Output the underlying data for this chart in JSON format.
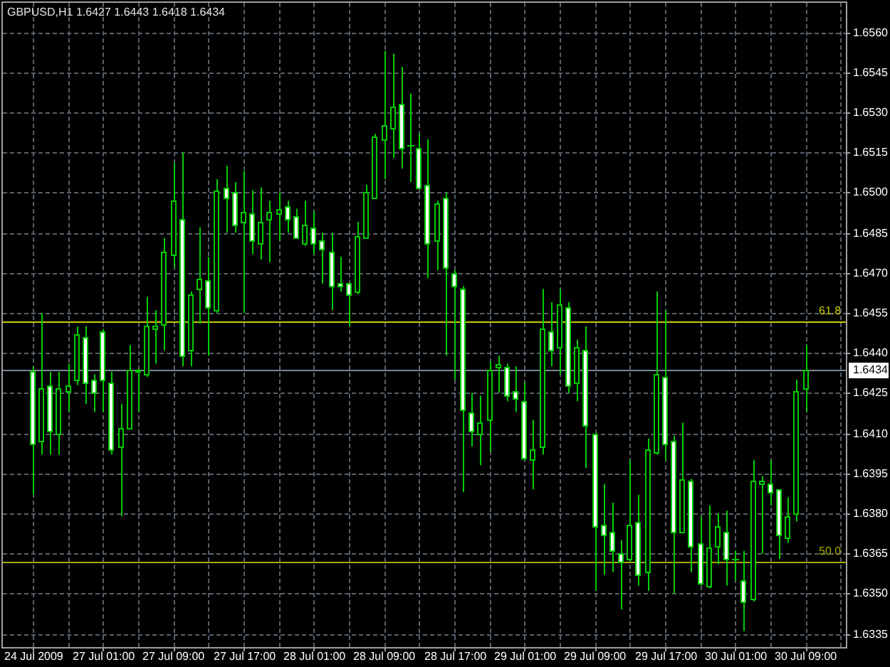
{
  "chart_data": {
    "type": "candlestick",
    "title": "GBPUSD,H1 1.6427 1.6443 1.6418 1.6434",
    "categories": [
      "24 Jul 2009",
      null,
      null,
      null,
      null,
      null,
      null,
      null,
      "27 Jul 01:00",
      null,
      null,
      null,
      null,
      null,
      null,
      null,
      "27 Jul 09:00",
      null,
      null,
      null,
      null,
      null,
      null,
      null,
      "27 Jul 17:00",
      null,
      null,
      null,
      null,
      null,
      null,
      null,
      "28 Jul 01:00",
      null,
      null,
      null,
      null,
      null,
      null,
      null,
      "28 Jul 09:00",
      null,
      null,
      null,
      null,
      null,
      null,
      null,
      "28 Jul 17:00",
      null,
      null,
      null,
      null,
      null,
      null,
      null,
      "29 Jul 01:00",
      null,
      null,
      null,
      null,
      null,
      null,
      null,
      "29 Jul 09:00",
      null,
      null,
      null,
      null,
      null,
      null,
      null,
      "29 Jul 17:00",
      null,
      null,
      null,
      null,
      null,
      null,
      null,
      "30 Jul 01:00",
      null,
      null,
      null,
      null,
      null,
      null,
      null,
      "30 Jul 09:00"
    ],
    "ohlc": [
      [
        1.6433,
        1.6435,
        1.6387,
        1.6406
      ],
      [
        1.6407,
        1.6455,
        1.6402,
        1.6427
      ],
      [
        1.6428,
        1.6433,
        1.6402,
        1.6411
      ],
      [
        1.641,
        1.6433,
        1.6402,
        1.6427
      ],
      [
        1.6426,
        1.6436,
        1.6418,
        1.6428
      ],
      [
        1.643,
        1.645,
        1.6428,
        1.6447
      ],
      [
        1.6446,
        1.645,
        1.6421,
        1.6429
      ],
      [
        1.643,
        1.6432,
        1.6418,
        1.6425
      ],
      [
        1.6448,
        1.6449,
        1.6418,
        1.643
      ],
      [
        1.6429,
        1.6433,
        1.6402,
        1.6404
      ],
      [
        1.6405,
        1.6421,
        1.6379,
        1.6412
      ],
      [
        1.6412,
        1.6443,
        1.6412,
        1.6434
      ],
      [
        1.6433,
        1.6434,
        1.6418,
        1.6434
      ],
      [
        1.6432,
        1.6461,
        1.6431,
        1.645
      ],
      [
        1.6449,
        1.6456,
        1.6436,
        1.645
      ],
      [
        1.6451,
        1.6483,
        1.6441,
        1.6478
      ],
      [
        1.6477,
        1.6511,
        1.6472,
        1.6497
      ],
      [
        1.649,
        1.6515,
        1.6435,
        1.6439
      ],
      [
        1.6441,
        1.6463,
        1.6435,
        1.6462
      ],
      [
        1.6464,
        1.6487,
        1.6451,
        1.6468
      ],
      [
        1.6467,
        1.6476,
        1.6439,
        1.6457
      ],
      [
        1.6456,
        1.6505,
        1.6455,
        1.6501
      ],
      [
        1.6502,
        1.651,
        1.6485,
        1.6498
      ],
      [
        1.65,
        1.6504,
        1.6485,
        1.6488
      ],
      [
        1.6489,
        1.6508,
        1.6455,
        1.6493
      ],
      [
        1.6492,
        1.6501,
        1.6477,
        1.6482
      ],
      [
        1.6481,
        1.6502,
        1.6475,
        1.6489
      ],
      [
        1.649,
        1.6497,
        1.6474,
        1.6493
      ],
      [
        1.6492,
        1.65,
        1.6482,
        1.6494
      ],
      [
        1.6495,
        1.6497,
        1.6485,
        1.649
      ],
      [
        1.6491,
        1.6494,
        1.6483,
        1.6483
      ],
      [
        1.6481,
        1.6497,
        1.648,
        1.6488
      ],
      [
        1.6487,
        1.6493,
        1.6477,
        1.6481
      ],
      [
        1.6482,
        1.6485,
        1.6466,
        1.6479
      ],
      [
        1.6478,
        1.6485,
        1.6456,
        1.6465
      ],
      [
        1.6466,
        1.6476,
        1.6463,
        1.6465
      ],
      [
        1.6466,
        1.6466,
        1.645,
        1.6462
      ],
      [
        1.6463,
        1.6489,
        1.6462,
        1.6484
      ],
      [
        1.6483,
        1.6503,
        1.6483,
        1.65
      ],
      [
        1.6498,
        1.6522,
        1.6498,
        1.6521
      ],
      [
        1.652,
        1.6553,
        1.6505,
        1.6525
      ],
      [
        1.6524,
        1.6552,
        1.6513,
        1.6532
      ],
      [
        1.6533,
        1.6547,
        1.6509,
        1.6517
      ],
      [
        1.6518,
        1.6537,
        1.6504,
        1.6518
      ],
      [
        1.6517,
        1.6522,
        1.6502,
        1.6502
      ],
      [
        1.6503,
        1.652,
        1.6468,
        1.6481
      ],
      [
        1.6482,
        1.6497,
        1.6471,
        1.6496
      ],
      [
        1.6498,
        1.65,
        1.6439,
        1.6472
      ],
      [
        1.647,
        1.6471,
        1.643,
        1.6465
      ],
      [
        1.6464,
        1.6465,
        1.6388,
        1.6419
      ],
      [
        1.6418,
        1.6425,
        1.6405,
        1.6411
      ],
      [
        1.641,
        1.6424,
        1.6398,
        1.6414
      ],
      [
        1.6415,
        1.6437,
        1.6403,
        1.6434
      ],
      [
        1.6435,
        1.6439,
        1.6425,
        1.6436
      ],
      [
        1.6435,
        1.6436,
        1.6422,
        1.6424
      ],
      [
        1.6426,
        1.6435,
        1.6418,
        1.6423
      ],
      [
        1.6422,
        1.6429,
        1.64,
        1.6401
      ],
      [
        1.64,
        1.6415,
        1.6389,
        1.6404
      ],
      [
        1.6405,
        1.6464,
        1.6402,
        1.6449
      ],
      [
        1.6448,
        1.6459,
        1.6435,
        1.6441
      ],
      [
        1.6442,
        1.6464,
        1.6432,
        1.6458
      ],
      [
        1.6457,
        1.6459,
        1.6425,
        1.6428
      ],
      [
        1.6429,
        1.6445,
        1.6422,
        1.6442
      ],
      [
        1.6441,
        1.645,
        1.6397,
        1.6413
      ],
      [
        1.641,
        1.641,
        1.6351,
        1.6375
      ],
      [
        1.6376,
        1.6391,
        1.6357,
        1.6372
      ],
      [
        1.6373,
        1.6384,
        1.6358,
        1.6366
      ],
      [
        1.6365,
        1.637,
        1.6344,
        1.6362
      ],
      [
        1.6363,
        1.64,
        1.6362,
        1.6376
      ],
      [
        1.6377,
        1.6387,
        1.6353,
        1.6357
      ],
      [
        1.6358,
        1.6408,
        1.6351,
        1.6404
      ],
      [
        1.6403,
        1.6463,
        1.6402,
        1.6432
      ],
      [
        1.6431,
        1.6456,
        1.64,
        1.6406
      ],
      [
        1.6407,
        1.6409,
        1.635,
        1.6373
      ],
      [
        1.6373,
        1.6414,
        1.6373,
        1.6393
      ],
      [
        1.6392,
        1.6393,
        1.6358,
        1.6368
      ],
      [
        1.6369,
        1.6379,
        1.6353,
        1.6354
      ],
      [
        1.6353,
        1.6383,
        1.6352,
        1.6367
      ],
      [
        1.6368,
        1.638,
        1.6361,
        1.6375
      ],
      [
        1.6373,
        1.6381,
        1.6353,
        1.6363
      ],
      [
        1.6363,
        1.6366,
        1.6355,
        1.6363
      ],
      [
        1.6355,
        1.6366,
        1.6336,
        1.6347
      ],
      [
        1.6348,
        1.64,
        1.6347,
        1.6392
      ],
      [
        1.6391,
        1.6394,
        1.6365,
        1.6392
      ],
      [
        1.6391,
        1.64,
        1.6383,
        1.6388
      ],
      [
        1.6389,
        1.6389,
        1.6363,
        1.6372
      ],
      [
        1.6371,
        1.6386,
        1.6369,
        1.6379
      ],
      [
        1.638,
        1.643,
        1.6377,
        1.6426
      ],
      [
        1.6427,
        1.6443,
        1.6418,
        1.6434
      ]
    ],
    "color": "#00cc00",
    "colors": [
      "#ffffff",
      "#000000",
      "#ffffff",
      "#000000",
      "#000000",
      "#000000",
      "#ffffff",
      "#ffffff",
      "#ffffff",
      "#ffffff",
      "#000000",
      "#000000",
      "#000000",
      "#000000",
      "#000000",
      "#000000",
      "#000000",
      "#ffffff",
      "#000000",
      "#000000",
      "#ffffff",
      "#000000",
      "#ffffff",
      "#ffffff",
      "#000000",
      "#ffffff",
      "#000000",
      "#000000",
      "#000000",
      "#ffffff",
      "#ffffff",
      "#000000",
      "#ffffff",
      "#ffffff",
      "#ffffff",
      "#ffffff",
      "#ffffff",
      "#000000",
      "#000000",
      "#000000",
      "#000000",
      "#000000",
      "#ffffff",
      null,
      "#ffffff",
      "#ffffff",
      "#000000",
      "#ffffff",
      "#ffffff",
      "#ffffff",
      "#ffffff",
      "#000000",
      "#000000",
      "#000000",
      "#ffffff",
      "#ffffff",
      "#ffffff",
      "#000000",
      "#000000",
      "#ffffff",
      "#000000",
      "#ffffff",
      "#000000",
      "#ffffff",
      "#ffffff",
      "#ffffff",
      "#ffffff",
      "#ffffff",
      "#000000",
      "#ffffff",
      "#000000",
      "#000000",
      "#ffffff",
      "#ffffff",
      "#000000",
      "#ffffff",
      "#ffffff",
      "#000000",
      "#000000",
      "#ffffff",
      null,
      "#ffffff",
      "#000000",
      "#000000",
      "#ffffff",
      "#ffffff",
      "#000000",
      "#000000",
      "#000000"
    ],
    "ylim": [
      1.633,
      1.6571
    ],
    "yticks": [
      1.6335,
      {
        "value": 1.635,
        "label": "1.6350"
      },
      1.6365,
      {
        "value": 1.638,
        "label": "1.6380"
      },
      1.6395,
      {
        "value": 1.641,
        "label": "1.6410"
      },
      1.6425,
      {
        "value": 1.644,
        "label": "1.6440"
      },
      1.6455,
      {
        "value": 1.647,
        "label": "1.6470"
      },
      1.6485,
      {
        "value": 1.65,
        "label": "1.6500"
      },
      1.6515,
      {
        "value": 1.653,
        "label": "1.6530"
      },
      1.6545,
      {
        "value": 1.656,
        "label": "1.6560"
      }
    ],
    "grid": true,
    "ref_lines": [
      {
        "axis": "y",
        "value": 1.6452,
        "color": "#c8c800"
      },
      {
        "axis": "y",
        "value": 1.6362,
        "color": "#a8a800"
      },
      {
        "axis": "y",
        "value": 1.6434,
        "label": "1.6434",
        "color": "#778899"
      }
    ],
    "annotations": [
      {
        "text": "61.8",
        "y": 1.6452
      },
      {
        "text": "50.0",
        "y": 1.6362
      }
    ]
  }
}
